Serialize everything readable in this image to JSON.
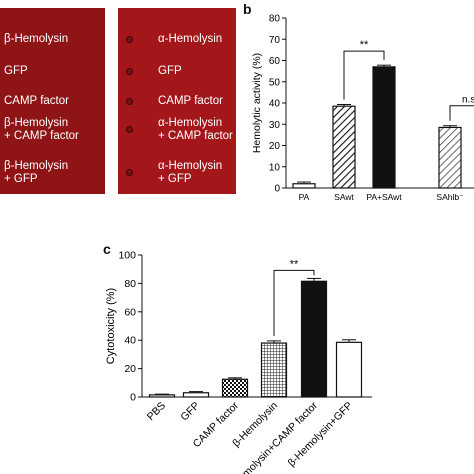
{
  "panel_a": {
    "left_plate_labels": [
      {
        "line1": "β-Hemolysin",
        "line2": ""
      },
      {
        "line1": "GFP",
        "line2": ""
      },
      {
        "line1": "CAMP factor",
        "line2": ""
      },
      {
        "line1": "β-Hemolysin",
        "line2": "+ CAMP factor"
      },
      {
        "line1": "β-Hemolysin",
        "line2": "+ GFP"
      }
    ],
    "right_plate_labels": [
      {
        "line1": "α-Hemolysin",
        "line2": ""
      },
      {
        "line1": "GFP",
        "line2": ""
      },
      {
        "line1": "CAMP factor",
        "line2": ""
      },
      {
        "line1": "α-Hemolysin",
        "line2": "+ CAMP factor"
      },
      {
        "line1": "α-Hemolysin",
        "line2": "+ GFP"
      }
    ],
    "colors": {
      "left_plate": "#8e1416",
      "right_plate": "#a3171b"
    }
  },
  "panel_b_letter": "b",
  "panel_c_letter": "c",
  "chart_data": [
    {
      "type": "bar",
      "panel": "b",
      "ylabel": "Hemolytic activity (%)",
      "xlabel": "",
      "ylim": [
        0,
        80
      ],
      "yticks": [
        0,
        10,
        20,
        30,
        40,
        50,
        60,
        70,
        80
      ],
      "categories": [
        "PA",
        "SAwt",
        "PA+SAwt",
        "SAhlb⁻"
      ],
      "values": [
        2,
        38.5,
        57,
        28.5
      ],
      "errors": [
        0.8,
        0.8,
        0.8,
        0.8
      ],
      "fills": [
        "white",
        "hatch",
        "black",
        "hatch-gray"
      ],
      "annotations": [
        {
          "text": "**",
          "between": [
            "SAwt",
            "PA+SAwt"
          ]
        },
        {
          "text": "n.s",
          "between": [
            "SAhlb⁻",
            ""
          ]
        }
      ],
      "grid": false
    },
    {
      "type": "bar",
      "panel": "c",
      "ylabel": "Cytotoxicity (%)",
      "xlabel": "",
      "ylim": [
        0,
        100
      ],
      "yticks": [
        0,
        20,
        40,
        60,
        80,
        100
      ],
      "categories": [
        "PBS",
        "GFP",
        "CAMP factor",
        "β-Hemolysin",
        "β-Hemolysin+CAMP factor",
        "β-Hemolysin+GFP"
      ],
      "values": [
        1.5,
        3,
        12.5,
        38,
        81.5,
        38.5
      ],
      "errors": [
        0.5,
        0.8,
        1,
        1.5,
        2,
        1.8
      ],
      "fills": [
        "white",
        "white",
        "checker",
        "grid",
        "black",
        "white"
      ],
      "annotations": [
        {
          "text": "**",
          "between": [
            "β-Hemolysin",
            "β-Hemolysin+CAMP factor"
          ]
        }
      ],
      "grid": false
    }
  ]
}
